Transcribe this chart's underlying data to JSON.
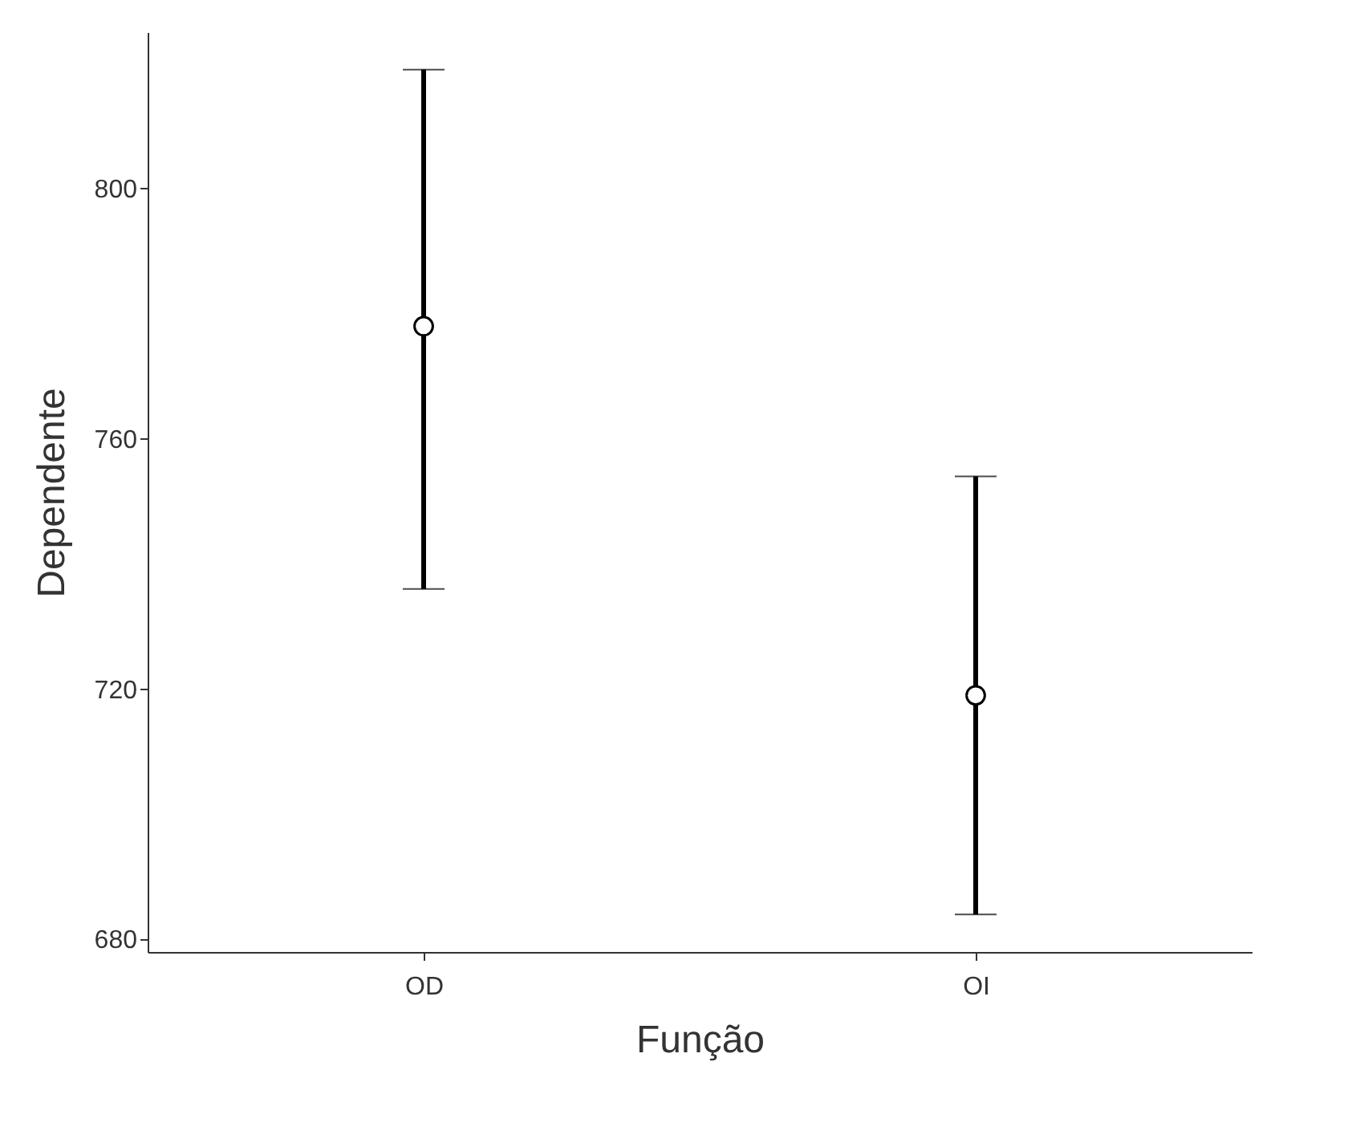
{
  "chart_data": {
    "type": "scatter",
    "xlabel": "Função",
    "ylabel": "Dependente",
    "categories": [
      "OD",
      "OI"
    ],
    "series": [
      {
        "color": "#000000",
        "values": [
          778,
          719
        ],
        "errors": [
          [
            736,
            819
          ],
          [
            684,
            754
          ]
        ]
      }
    ],
    "ylim": [
      678,
      825
    ],
    "yticks": [
      680,
      720,
      760,
      800
    ],
    "grid": false,
    "marker": "circle"
  }
}
